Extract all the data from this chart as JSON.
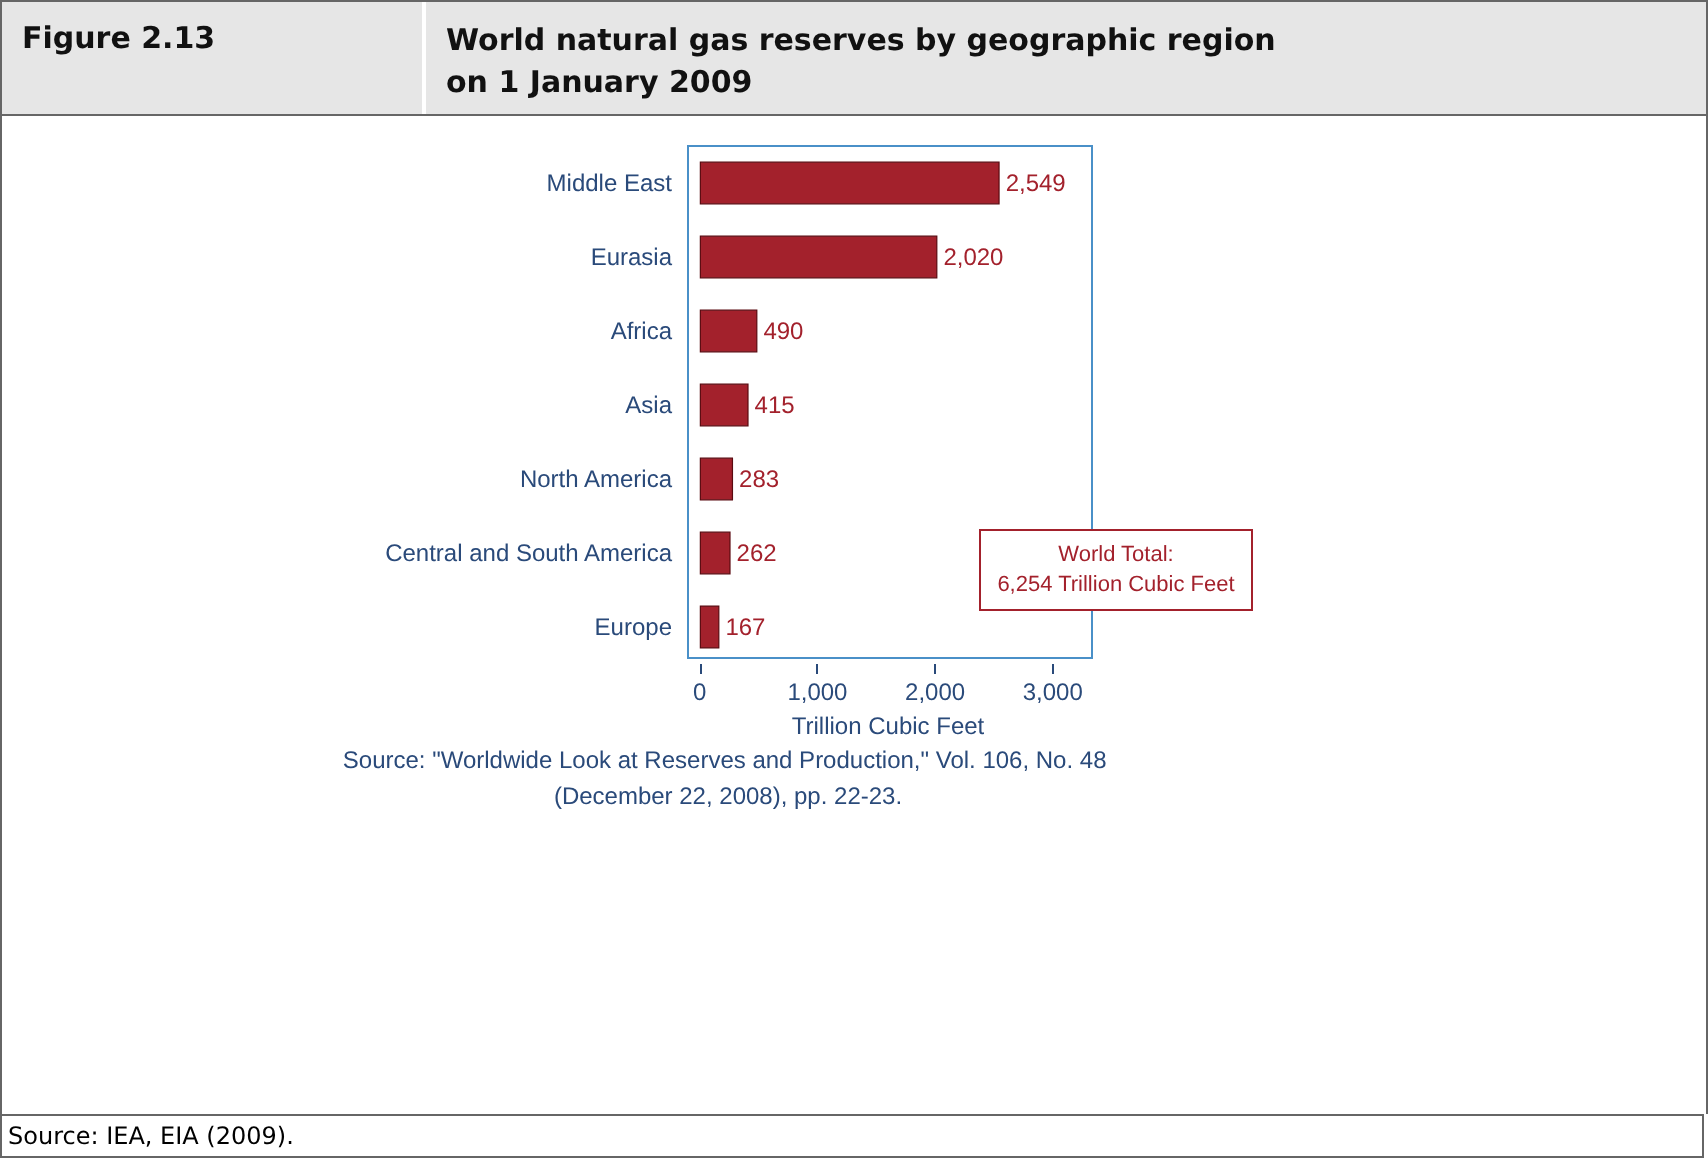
{
  "chart_data": {
    "type": "bar",
    "orientation": "horizontal",
    "title": "World natural gas reserves by geographic region on 1 January 2009",
    "subtitle": "Figure 2.13",
    "xlabel": "Trillion Cubic Feet",
    "categories": [
      "Middle East",
      "Eurasia",
      "Africa",
      "Asia",
      "North America",
      "Central and South America",
      "Europe"
    ],
    "values": [
      2549,
      2020,
      490,
      415,
      283,
      262,
      167
    ],
    "value_labels": [
      "2,549",
      "2,020",
      "490",
      "415",
      "283",
      "262",
      "167"
    ],
    "color": "#a3212c",
    "xlim": [
      -100,
      3300
    ],
    "xticks": [
      0,
      {
        "value": 1000,
        "label": "1,000"
      },
      {
        "value": 2000,
        "label": "2,000"
      },
      {
        "value": 3000,
        "label": "3,000"
      }
    ],
    "grid": false,
    "annotations": [
      "World Total:\n6,254 Trillion Cubic Feet",
      "Source: \"Worldwide Look at Reserves and Production,\" Vol. 106, No. 48 (December 22, 2008), pp. 22-23.",
      "Source: IEA, EIA (2009)."
    ]
  }
}
